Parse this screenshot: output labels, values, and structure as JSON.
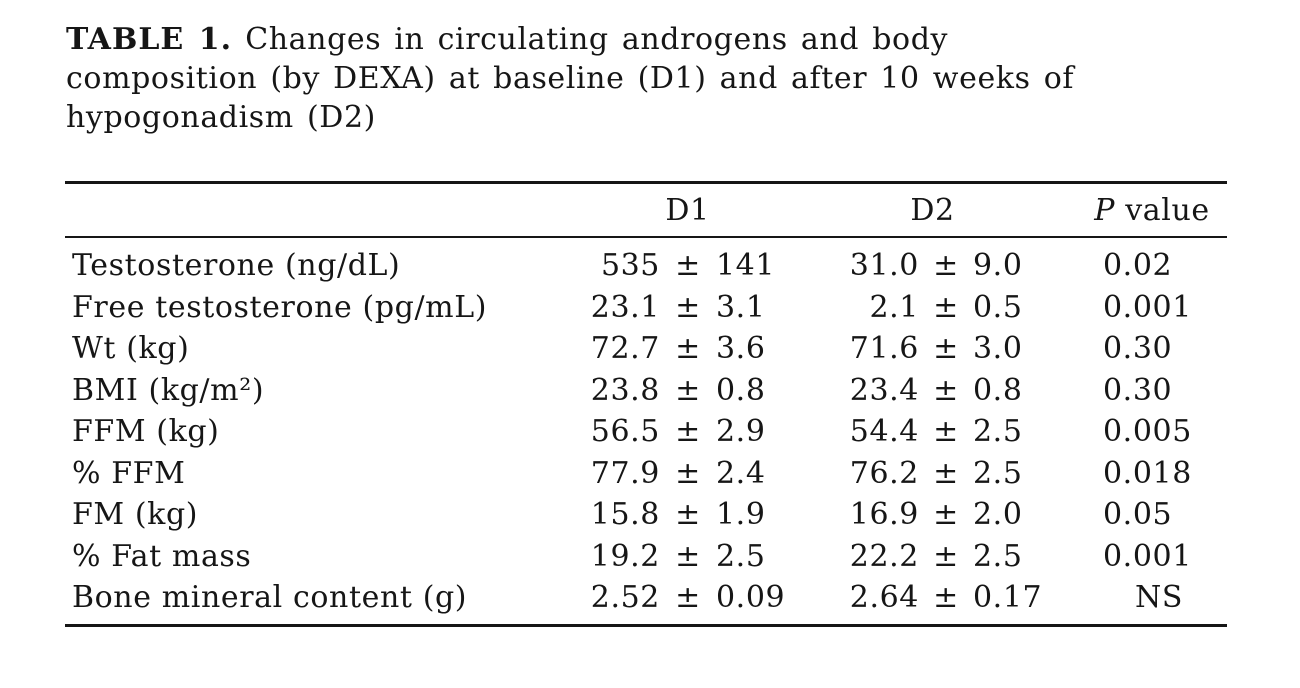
{
  "caption": {
    "bold": "TABLE 1.",
    "line1_rest": "Changes in circulating androgens and body",
    "line2": "composition (by DEXA) at baseline (D1) and after 10 weeks of",
    "line3": "hypogonadism (D2)"
  },
  "table": {
    "columns": {
      "d1": "D1",
      "d2": "D2",
      "p_italic": "P",
      "p_rest": " value"
    },
    "sym": {
      "pm": "±"
    },
    "rows": [
      {
        "label": "Testosterone (ng/dL)",
        "d1": {
          "mean": "535",
          "err": "141"
        },
        "d2": {
          "mean": "31.0",
          "err": "9.0"
        },
        "p": "0.02"
      },
      {
        "label": "Free testosterone (pg/mL)",
        "d1": {
          "mean": "23.1",
          "err": "3.1"
        },
        "d2": {
          "mean": "2.1",
          "err": "0.5"
        },
        "p": "0.001"
      },
      {
        "label": "Wt (kg)",
        "d1": {
          "mean": "72.7",
          "err": "3.6"
        },
        "d2": {
          "mean": "71.6",
          "err": "3.0"
        },
        "p": "0.30"
      },
      {
        "label": "BMI (kg/m²)",
        "d1": {
          "mean": "23.8",
          "err": "0.8"
        },
        "d2": {
          "mean": "23.4",
          "err": "0.8"
        },
        "p": "0.30"
      },
      {
        "label": "FFM (kg)",
        "d1": {
          "mean": "56.5",
          "err": "2.9"
        },
        "d2": {
          "mean": "54.4",
          "err": "2.5"
        },
        "p": "0.005"
      },
      {
        "label": "% FFM",
        "d1": {
          "mean": "77.9",
          "err": "2.4"
        },
        "d2": {
          "mean": "76.2",
          "err": "2.5"
        },
        "p": "0.018"
      },
      {
        "label": "FM (kg)",
        "d1": {
          "mean": "15.8",
          "err": "1.9"
        },
        "d2": {
          "mean": "16.9",
          "err": "2.0"
        },
        "p": "0.05"
      },
      {
        "label": "% Fat mass",
        "d1": {
          "mean": "19.2",
          "err": "2.5"
        },
        "d2": {
          "mean": "22.2",
          "err": "2.5"
        },
        "p": "0.001"
      },
      {
        "label": "Bone mineral content (g)",
        "d1": {
          "mean": "2.52",
          "err": "0.09"
        },
        "d2": {
          "mean": "2.64",
          "err": "0.17"
        },
        "p": "NS"
      }
    ]
  },
  "chart_data": {
    "type": "table",
    "title": "TABLE 1. Changes in circulating androgens and body composition (by DEXA) at baseline (D1) and after 10 weeks of hypogonadism (D2)",
    "columns": [
      "",
      "D1",
      "D2",
      "P value"
    ],
    "rows": [
      [
        "Testosterone (ng/dL)",
        "535 ± 141",
        "31.0 ± 9.0",
        "0.02"
      ],
      [
        "Free testosterone (pg/mL)",
        "23.1 ± 3.1",
        "2.1 ± 0.5",
        "0.001"
      ],
      [
        "Wt (kg)",
        "72.7 ± 3.6",
        "71.6 ± 3.0",
        "0.30"
      ],
      [
        "BMI (kg/m²)",
        "23.8 ± 0.8",
        "23.4 ± 0.8",
        "0.30"
      ],
      [
        "FFM (kg)",
        "56.5 ± 2.9",
        "54.4 ± 2.5",
        "0.005"
      ],
      [
        "% FFM",
        "77.9 ± 2.4",
        "76.2 ± 2.5",
        "0.018"
      ],
      [
        "FM (kg)",
        "15.8 ± 1.9",
        "16.9 ± 2.0",
        "0.05"
      ],
      [
        "% Fat mass",
        "19.2 ± 2.5",
        "22.2 ± 2.5",
        "0.001"
      ],
      [
        "Bone mineral content (g)",
        "2.52 ± 0.09",
        "2.64 ± 0.17",
        "NS"
      ]
    ]
  }
}
